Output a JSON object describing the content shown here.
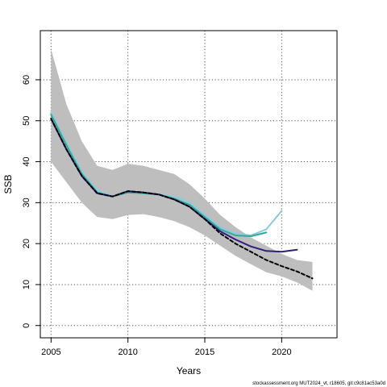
{
  "chart_data": {
    "type": "line",
    "xlabel": "Years",
    "ylabel": "SSB",
    "xlim": [
      2004.3,
      2023.6
    ],
    "ylim": [
      -3,
      72
    ],
    "x_ticks": [
      2005,
      2010,
      2015,
      2020
    ],
    "y_ticks": [
      0,
      10,
      20,
      30,
      40,
      50,
      60
    ],
    "grid": true,
    "grid_style": "dotted",
    "band": {
      "color": "#bebebe",
      "x": [
        2005,
        2006,
        2007,
        2008,
        2009,
        2010,
        2011,
        2012,
        2013,
        2014,
        2015,
        2016,
        2017,
        2018,
        2019,
        2020,
        2021,
        2022
      ],
      "upper": [
        67.5,
        54,
        45,
        39,
        38,
        39.5,
        39,
        38,
        37,
        34.5,
        31,
        27,
        24,
        21.5,
        19.5,
        17.5,
        16,
        15.5
      ],
      "lower": [
        40,
        35,
        30,
        26.5,
        26,
        27,
        27.2,
        26.5,
        25.5,
        24,
        22,
        19.5,
        17,
        15,
        13,
        12,
        10.5,
        8.5
      ]
    },
    "series": [
      {
        "color": "#87cdde",
        "x": [
          2005,
          2006,
          2007,
          2008,
          2009,
          2010,
          2011,
          2012,
          2013,
          2014,
          2015,
          2016,
          2017,
          2018,
          2019,
          2020
        ],
        "values": [
          52,
          44.5,
          37.5,
          33,
          31.5,
          32.5,
          32.5,
          32,
          31.5,
          30,
          27,
          24,
          22.5,
          22,
          23.5,
          28
        ]
      },
      {
        "color": "#34a89a",
        "x": [
          2005,
          2006,
          2007,
          2008,
          2009,
          2010,
          2011,
          2012,
          2013,
          2014,
          2015,
          2016,
          2017,
          2018,
          2019
        ],
        "values": [
          51.5,
          44,
          37,
          32.5,
          31.5,
          32.5,
          32.3,
          32,
          31,
          29.5,
          26.5,
          23.5,
          22,
          21.8,
          22.7
        ]
      },
      {
        "color": "#2e1e7e",
        "x": [
          2005,
          2006,
          2007,
          2008,
          2009,
          2010,
          2011,
          2012,
          2013,
          2014,
          2015,
          2016,
          2017,
          2018,
          2019,
          2020,
          2021
        ],
        "values": [
          50.5,
          43,
          36.5,
          32.3,
          31.5,
          32.8,
          32.5,
          32,
          30.8,
          29,
          26,
          23,
          21,
          19.3,
          18.2,
          18,
          18.5
        ]
      },
      {
        "color": "#000000",
        "dashed": true,
        "x": [
          2005,
          2006,
          2007,
          2008,
          2009,
          2010,
          2011,
          2012,
          2013,
          2014,
          2015,
          2016,
          2017,
          2018,
          2019,
          2020,
          2021,
          2022
        ],
        "values": [
          50.5,
          43,
          36.5,
          32.3,
          31.5,
          32.8,
          32.5,
          32,
          30.8,
          29,
          26,
          22.5,
          20,
          18,
          16,
          14.5,
          13.2,
          11.5
        ]
      }
    ]
  },
  "footer": "stockassessment.org MUT2024_vt, r18605, git:c9c81ac53a0d"
}
